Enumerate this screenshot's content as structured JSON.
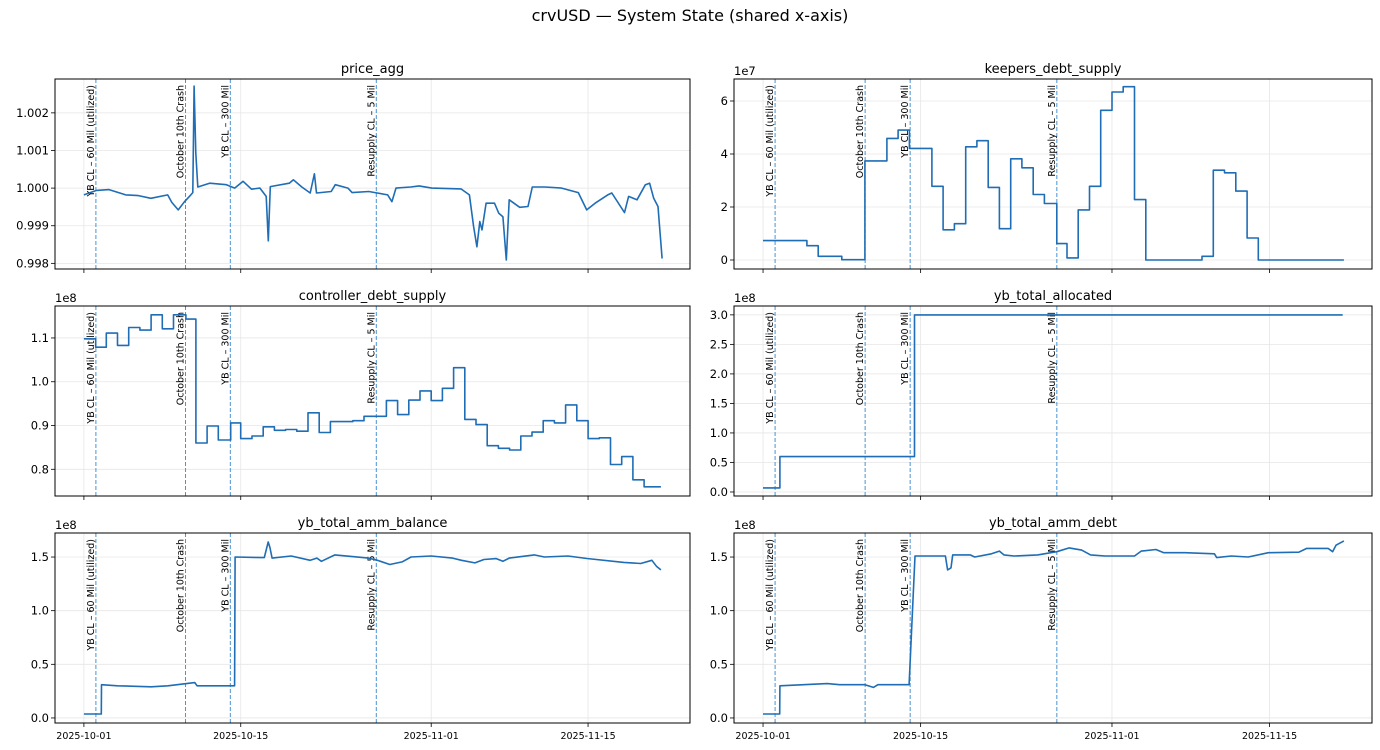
{
  "figure_title": "crvUSD — System State (shared x-axis)",
  "colors": {
    "series": "#1f6db5",
    "event_line": "#4a94d4",
    "grid": "#e6e6e6"
  },
  "chart_data": {
    "type": "line",
    "layout": "3x2 subplots",
    "x_unit": "days since 2025-10-01",
    "xlim": [
      -2.58,
      54.1
    ],
    "xticks": [
      0,
      14,
      31,
      45
    ],
    "xtick_labels": [
      "2025-10-01",
      "2025-10-15",
      "2025-11-01",
      "2025-11-15"
    ],
    "grid": true,
    "events": [
      {
        "x": 1.07,
        "label": "YB CL – 60 Mil (utilized)"
      },
      {
        "x": 9.07,
        "label": "October 10th Crash"
      },
      {
        "x": 13.07,
        "label": "YB CL – 300 Mil"
      },
      {
        "x": 26.1,
        "label": "Resupply CL – 5 Mil"
      }
    ],
    "panels": [
      {
        "title": "price_agg",
        "offset_label": "",
        "drawstyle": "line",
        "ylim": [
          0.99785,
          1.0029
        ],
        "yticks": [
          0.998,
          0.999,
          1.0,
          1.001,
          1.002
        ],
        "ytick_labels": [
          "0.998",
          "0.999",
          "1.000",
          "1.001",
          "1.002"
        ],
        "points": [
          [
            0,
            0.99982
          ],
          [
            1.12,
            0.99994
          ],
          [
            2.24,
            0.99996
          ],
          [
            3.74,
            0.99982
          ],
          [
            4.86,
            0.9998
          ],
          [
            5.98,
            0.99973
          ],
          [
            7.48,
            0.99982
          ],
          [
            7.85,
            0.99962
          ],
          [
            8.42,
            0.99942
          ],
          [
            8.98,
            0.99964
          ],
          [
            9.54,
            0.99982
          ],
          [
            9.72,
            0.99988
          ],
          [
            9.84,
            1.00271
          ],
          [
            9.99,
            1.00093
          ],
          [
            10.17,
            1.00003
          ],
          [
            11.22,
            1.00013
          ],
          [
            12.72,
            1.00009
          ],
          [
            13.46,
            1.0
          ],
          [
            14.21,
            1.00018
          ],
          [
            14.96,
            0.99997
          ],
          [
            15.71,
            1.0
          ],
          [
            16.27,
            0.99978
          ],
          [
            16.46,
            0.9986
          ],
          [
            16.64,
            1.00004
          ],
          [
            18.33,
            1.00013
          ],
          [
            18.7,
            1.00022
          ],
          [
            19.45,
            1.00003
          ],
          [
            20.2,
            0.99987
          ],
          [
            20.57,
            1.00038
          ],
          [
            20.76,
            0.99987
          ],
          [
            22.07,
            0.99991
          ],
          [
            22.44,
            1.00009
          ],
          [
            23.56,
            1.0
          ],
          [
            23.94,
            0.99988
          ],
          [
            25.43,
            0.99991
          ],
          [
            26.18,
            0.99987
          ],
          [
            27.12,
            0.99982
          ],
          [
            27.49,
            0.99964
          ],
          [
            27.86,
            1.0
          ],
          [
            29.17,
            1.00003
          ],
          [
            29.92,
            1.00006
          ],
          [
            31.04,
            1.0
          ],
          [
            33.66,
            0.99998
          ],
          [
            34.41,
            0.99982
          ],
          [
            34.78,
            0.99898
          ],
          [
            35.08,
            0.99844
          ],
          [
            35.34,
            0.99911
          ],
          [
            35.53,
            0.99889
          ],
          [
            35.9,
            0.9996
          ],
          [
            36.65,
            0.9996
          ],
          [
            37.03,
            0.99933
          ],
          [
            37.4,
            0.99924
          ],
          [
            37.7,
            0.99809
          ],
          [
            37.96,
            0.99969
          ],
          [
            38.9,
            0.99949
          ],
          [
            39.64,
            0.99951
          ],
          [
            40.02,
            1.00003
          ],
          [
            41.14,
            1.00003
          ],
          [
            42.64,
            1.0
          ],
          [
            44.13,
            0.99988
          ],
          [
            44.88,
            0.99942
          ],
          [
            45.63,
            0.9996
          ],
          [
            46.75,
            0.99982
          ],
          [
            47.12,
            0.99987
          ],
          [
            48.25,
            0.99935
          ],
          [
            48.62,
            0.99978
          ],
          [
            49.37,
            0.99969
          ],
          [
            50.12,
            1.00009
          ],
          [
            50.49,
            1.00013
          ],
          [
            50.86,
            0.99973
          ],
          [
            51.24,
            0.99951
          ],
          [
            51.43,
            0.9988
          ],
          [
            51.61,
            0.99813
          ]
        ]
      },
      {
        "title": "keepers_debt_supply",
        "offset_label": "1e7",
        "drawstyle": "steps-post",
        "ylim": [
          -0.34,
          6.83
        ],
        "yticks": [
          0,
          2,
          4,
          6
        ],
        "ytick_labels": [
          "0",
          "2",
          "4",
          "6"
        ],
        "points": [
          [
            0,
            0.73
          ],
          [
            3.9,
            0.54
          ],
          [
            4.9,
            0.14
          ],
          [
            7.0,
            0.01
          ],
          [
            9.05,
            3.74
          ],
          [
            11.0,
            4.59
          ],
          [
            12.0,
            4.9
          ],
          [
            13.0,
            4.21
          ],
          [
            15.0,
            2.78
          ],
          [
            16.0,
            1.14
          ],
          [
            17.0,
            1.37
          ],
          [
            18.0,
            4.27
          ],
          [
            19.0,
            4.5
          ],
          [
            20.0,
            2.74
          ],
          [
            21.0,
            1.18
          ],
          [
            22.0,
            3.82
          ],
          [
            23.0,
            3.48
          ],
          [
            24.0,
            2.47
          ],
          [
            25.0,
            2.13
          ],
          [
            26.1,
            0.62
          ],
          [
            27.0,
            0.08
          ],
          [
            28.0,
            1.89
          ],
          [
            29.0,
            2.78
          ],
          [
            30.0,
            5.65
          ],
          [
            31.0,
            6.34
          ],
          [
            32.0,
            6.54
          ],
          [
            33.0,
            2.28
          ],
          [
            34.0,
            0
          ],
          [
            39.0,
            0.14
          ],
          [
            40.0,
            3.39
          ],
          [
            41.0,
            3.29
          ],
          [
            42.0,
            2.6
          ],
          [
            43.0,
            0.83
          ],
          [
            44.0,
            0
          ],
          [
            51.6,
            0
          ]
        ]
      },
      {
        "title": "controller_debt_supply",
        "offset_label": "1e8",
        "drawstyle": "steps-post",
        "ylim": [
          0.739,
          1.173
        ],
        "yticks": [
          0.8,
          0.9,
          1.0,
          1.1
        ],
        "ytick_labels": [
          "0.8",
          "0.9",
          "1.0",
          "1.1"
        ],
        "points": [
          [
            0,
            1.098
          ],
          [
            1.05,
            1.079
          ],
          [
            2,
            1.111
          ],
          [
            3,
            1.083
          ],
          [
            4,
            1.124
          ],
          [
            5,
            1.118
          ],
          [
            6,
            1.153
          ],
          [
            7,
            1.121
          ],
          [
            8,
            1.153
          ],
          [
            9.1,
            1.143
          ],
          [
            10,
            0.86
          ],
          [
            11,
            0.899
          ],
          [
            12,
            0.867
          ],
          [
            13.1,
            0.906
          ],
          [
            14,
            0.87
          ],
          [
            15,
            0.876
          ],
          [
            16,
            0.897
          ],
          [
            17,
            0.889
          ],
          [
            18,
            0.891
          ],
          [
            19,
            0.887
          ],
          [
            20,
            0.929
          ],
          [
            21,
            0.884
          ],
          [
            22,
            0.909
          ],
          [
            24,
            0.911
          ],
          [
            25,
            0.921
          ],
          [
            27,
            0.957
          ],
          [
            28,
            0.925
          ],
          [
            29,
            0.958
          ],
          [
            30,
            0.979
          ],
          [
            31,
            0.957
          ],
          [
            32,
            0.985
          ],
          [
            33,
            1.032
          ],
          [
            34,
            0.914
          ],
          [
            35,
            0.902
          ],
          [
            36,
            0.854
          ],
          [
            37,
            0.848
          ],
          [
            38,
            0.844
          ],
          [
            39,
            0.876
          ],
          [
            40,
            0.885
          ],
          [
            41,
            0.911
          ],
          [
            42,
            0.906
          ],
          [
            43,
            0.947
          ],
          [
            44,
            0.911
          ],
          [
            45,
            0.87
          ],
          [
            46,
            0.872
          ],
          [
            47,
            0.811
          ],
          [
            48,
            0.829
          ],
          [
            49,
            0.776
          ],
          [
            50,
            0.76
          ],
          [
            51.5,
            0.76
          ]
        ]
      },
      {
        "title": "yb_total_allocated",
        "offset_label": "1e8",
        "drawstyle": "steps-post",
        "ylim": [
          -0.068,
          3.15
        ],
        "yticks": [
          0,
          0.5,
          1.0,
          1.5,
          2.0,
          2.5,
          3.0
        ],
        "ytick_labels": [
          "0.0",
          "0.5",
          "1.0",
          "1.5",
          "2.0",
          "2.5",
          "3.0"
        ],
        "points": [
          [
            0,
            0.07
          ],
          [
            1.5,
            0.6
          ],
          [
            13.46,
            3.0
          ],
          [
            51.5,
            3.0
          ]
        ]
      },
      {
        "title": "yb_total_amm_balance",
        "offset_label": "1e8",
        "drawstyle": "line",
        "ylim": [
          -0.047,
          1.724
        ],
        "yticks": [
          0,
          0.5,
          1.0,
          1.5
        ],
        "ytick_labels": [
          "0.0",
          "0.5",
          "1.0",
          "1.5"
        ],
        "points": [
          [
            0,
            0.037
          ],
          [
            1.55,
            0.037
          ],
          [
            1.57,
            0.31
          ],
          [
            3.0,
            0.3
          ],
          [
            6.0,
            0.29
          ],
          [
            7.5,
            0.3
          ],
          [
            9.9,
            0.33
          ],
          [
            10.1,
            0.3
          ],
          [
            13.45,
            0.3
          ],
          [
            13.5,
            1.5
          ],
          [
            16.1,
            1.495
          ],
          [
            16.45,
            1.64
          ],
          [
            16.6,
            1.59
          ],
          [
            16.8,
            1.49
          ],
          [
            18.5,
            1.51
          ],
          [
            20.2,
            1.47
          ],
          [
            20.8,
            1.49
          ],
          [
            21.2,
            1.46
          ],
          [
            22.4,
            1.52
          ],
          [
            25.4,
            1.49
          ],
          [
            26.2,
            1.47
          ],
          [
            27.3,
            1.43
          ],
          [
            28.4,
            1.455
          ],
          [
            29.2,
            1.5
          ],
          [
            31.0,
            1.51
          ],
          [
            32.9,
            1.49
          ],
          [
            33.7,
            1.47
          ],
          [
            34.9,
            1.445
          ],
          [
            35.7,
            1.477
          ],
          [
            36.8,
            1.485
          ],
          [
            37.4,
            1.46
          ],
          [
            37.96,
            1.49
          ],
          [
            40.2,
            1.52
          ],
          [
            41.1,
            1.5
          ],
          [
            43.2,
            1.51
          ],
          [
            44.9,
            1.486
          ],
          [
            48.2,
            1.45
          ],
          [
            49.7,
            1.44
          ],
          [
            50.7,
            1.47
          ],
          [
            51.1,
            1.415
          ],
          [
            51.5,
            1.38
          ]
        ]
      },
      {
        "title": "yb_total_amm_debt",
        "offset_label": "1e8",
        "drawstyle": "line",
        "ylim": [
          -0.047,
          1.724
        ],
        "yticks": [
          0,
          0.5,
          1.0,
          1.5
        ],
        "ytick_labels": [
          "0.0",
          "0.5",
          "1.0",
          "1.5"
        ],
        "points": [
          [
            0,
            0.037
          ],
          [
            1.48,
            0.037
          ],
          [
            1.5,
            0.3
          ],
          [
            5.7,
            0.32
          ],
          [
            6.8,
            0.31
          ],
          [
            9.05,
            0.31
          ],
          [
            9.8,
            0.285
          ],
          [
            10.2,
            0.31
          ],
          [
            12.98,
            0.31
          ],
          [
            13.5,
            1.51
          ],
          [
            16.2,
            1.51
          ],
          [
            16.4,
            1.38
          ],
          [
            16.7,
            1.4
          ],
          [
            16.85,
            1.52
          ],
          [
            18.4,
            1.52
          ],
          [
            18.8,
            1.5
          ],
          [
            20.3,
            1.53
          ],
          [
            21.0,
            1.555
          ],
          [
            21.4,
            1.52
          ],
          [
            22.3,
            1.51
          ],
          [
            24.4,
            1.52
          ],
          [
            26.1,
            1.55
          ],
          [
            27.2,
            1.585
          ],
          [
            28.3,
            1.565
          ],
          [
            29.1,
            1.52
          ],
          [
            30.4,
            1.51
          ],
          [
            33.0,
            1.51
          ],
          [
            33.6,
            1.555
          ],
          [
            34.9,
            1.57
          ],
          [
            35.6,
            1.54
          ],
          [
            37.5,
            1.54
          ],
          [
            40.1,
            1.53
          ],
          [
            40.3,
            1.495
          ],
          [
            41.6,
            1.51
          ],
          [
            43.1,
            1.5
          ],
          [
            44.9,
            1.54
          ],
          [
            47.6,
            1.545
          ],
          [
            48.3,
            1.58
          ],
          [
            50.2,
            1.58
          ],
          [
            50.6,
            1.55
          ],
          [
            50.9,
            1.61
          ],
          [
            51.6,
            1.65
          ]
        ]
      }
    ]
  }
}
